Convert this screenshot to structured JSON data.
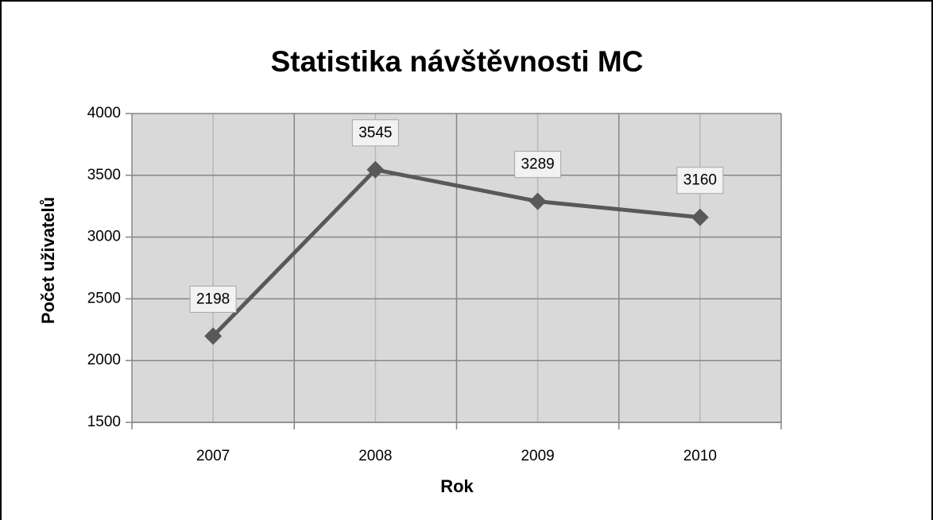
{
  "chart_data": {
    "type": "line",
    "title": "Statistika návštěvnosti MC",
    "x_label": "Rok",
    "y_label": "Počet uživatelů",
    "categories": [
      "2007",
      "2008",
      "2009",
      "2010"
    ],
    "values": [
      2198,
      3545,
      3289,
      3160
    ],
    "color": "#595959",
    "ylim": [
      1500,
      4000
    ],
    "yticks": [
      1500,
      2000,
      2500,
      3000,
      3500,
      4000
    ],
    "grid": true,
    "data_labels": true
  }
}
